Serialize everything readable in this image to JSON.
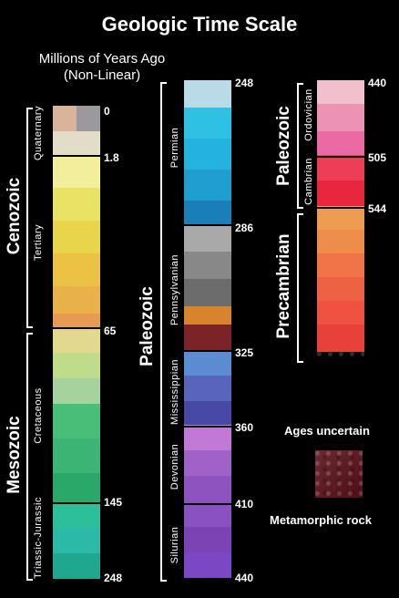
{
  "title": "Geologic Time Scale",
  "subtitle_line1": "Millions of Years Ago",
  "subtitle_line2": "(Non-Linear)",
  "col1": {
    "eras": [
      "Cenozoic",
      "Mesozoic"
    ],
    "periods": [
      "Quaternary",
      "Tertiary",
      "Cretaceous",
      "Triassic-Jurassic"
    ],
    "ages": [
      "0",
      "1.8",
      "65",
      "145",
      "248"
    ]
  },
  "col2": {
    "era": "Paleozoic",
    "periods": [
      "Permian",
      "Pennsylvanian",
      "Mississippian",
      "Devonian",
      "Silurian"
    ],
    "ages": [
      "248",
      "286",
      "325",
      "360",
      "410",
      "440"
    ]
  },
  "col3": {
    "eras": [
      "Paleozoic",
      "Precambrian"
    ],
    "periods": [
      "Ordovician",
      "Cambrian"
    ],
    "ages": [
      "440",
      "505",
      "544"
    ]
  },
  "legend": {
    "uncertain": "Ages uncertain",
    "metamorphic": "Metamorphic rock",
    "swatch_color": "#5a1019"
  },
  "colors": {
    "quaternary": [
      "#d9b49a",
      "#9a9a9e",
      "#e2ddc6"
    ],
    "tertiary": [
      "#f3ee9c",
      "#e8e265",
      "#e9d54c",
      "#ebc243",
      "#e9b14a",
      "#e79b52"
    ],
    "cretaceous": [
      "#e2d98f",
      "#bedc8a",
      "#a6d39d",
      "#49be79",
      "#3cb473",
      "#2aa869"
    ],
    "triassic_jurassic": [
      "#2dbf9a",
      "#2db9a8",
      "#1fa78f"
    ],
    "permian": [
      "#b9dbe8",
      "#2ec1e3",
      "#23b3de",
      "#1f9fd0",
      "#1a7fb8"
    ],
    "pennsylvanian": [
      "#a9a9a9",
      "#888888",
      "#6c6c6c",
      "#d8842c",
      "#7b2327"
    ],
    "mississippian": [
      "#5b8bd0",
      "#5765bc",
      "#4848a6"
    ],
    "devonian": [
      "#c07ad6",
      "#a061c9",
      "#8f53c0"
    ],
    "silurian": [
      "#8a52c0",
      "#7c43b7",
      "#7b47c4"
    ],
    "ordovician": [
      "#f1c0cc",
      "#ea93b4",
      "#ec6aa3",
      "#e94d8c"
    ],
    "cambrian": [
      "#ed3d57",
      "#e6273d"
    ],
    "precambrian": [
      "#ef9c53",
      "#ee8c4a",
      "#f07448",
      "#ed6243",
      "#ef5240",
      "#e8413a"
    ]
  }
}
